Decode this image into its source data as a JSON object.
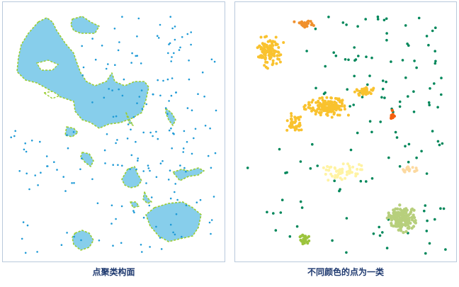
{
  "panels": {
    "left": {
      "caption": "点聚类构面"
    },
    "right": {
      "caption": "不同颜色的点为一类"
    }
  },
  "colors": {
    "polygon_fill": "#87ceeb",
    "polygon_outline": "#9acd32",
    "point_blue": "#1e9ad6",
    "cluster_gold": "#f9c22e",
    "cluster_orange": "#f0902c",
    "cluster_red_orange": "#f5600f",
    "cluster_pale_yellow": "#fff3a3",
    "cluster_peach": "#fcd9a0",
    "cluster_light_green": "#b7cf7c",
    "cluster_olive": "#9cc43c",
    "noise_green": "#00875a"
  }
}
